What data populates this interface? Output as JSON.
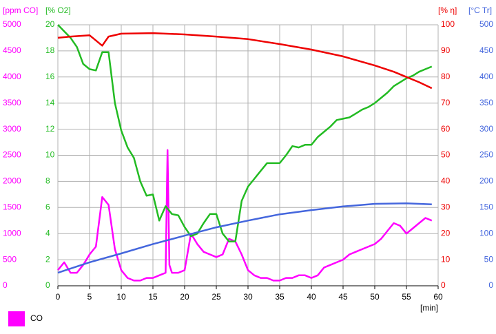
{
  "chart_data": {
    "type": "line",
    "ylabel": "[ppm CO]",
    "ylim": [
      0,
      5000
    ],
    "yticks": [
      0,
      500,
      1000,
      1500,
      2000,
      2500,
      3000,
      3500,
      4000,
      4500,
      5000
    ],
    "y2label": "[% O2]",
    "y2lim": [
      0,
      20
    ],
    "y2ticks": [
      0,
      2,
      4,
      6,
      8,
      10,
      12,
      14,
      16,
      18,
      20
    ],
    "y3label": "[% η]",
    "y3lim": [
      0,
      100
    ],
    "y3ticks": [
      0,
      10,
      20,
      30,
      40,
      50,
      60,
      70,
      80,
      90,
      100
    ],
    "y4label": "[°C Tr]",
    "y4lim": [
      0,
      500
    ],
    "y4ticks": [
      0,
      50,
      100,
      150,
      200,
      250,
      300,
      350,
      400,
      450,
      500
    ],
    "xlabel": "[min]",
    "xlim": [
      0,
      60
    ],
    "xticks": [
      0,
      5,
      10,
      15,
      20,
      25,
      30,
      35,
      40,
      45,
      50,
      55,
      60
    ],
    "grid": true,
    "legend": "bottom-left",
    "series": [
      {
        "name": "CO",
        "color": "#ff00ff",
        "axis": "y",
        "x": [
          0,
          1,
          2,
          3,
          4,
          5,
          6,
          7,
          8,
          9,
          10,
          11,
          12,
          13,
          14,
          15,
          16,
          17,
          17.3,
          17.6,
          18,
          19,
          20,
          21,
          22,
          23,
          24,
          25,
          26,
          27,
          28,
          29,
          30,
          31,
          32,
          33,
          34,
          35,
          36,
          37,
          38,
          39,
          40,
          41,
          42,
          43,
          44,
          45,
          46,
          47,
          48,
          49,
          50,
          51,
          52,
          53,
          54,
          55,
          56,
          57,
          58,
          59
        ],
        "values": [
          300,
          450,
          250,
          250,
          400,
          600,
          750,
          1700,
          1550,
          700,
          300,
          150,
          100,
          100,
          150,
          150,
          200,
          250,
          2600,
          400,
          250,
          250,
          300,
          1000,
          800,
          650,
          600,
          550,
          600,
          900,
          850,
          600,
          300,
          200,
          150,
          150,
          100,
          100,
          150,
          150,
          200,
          200,
          150,
          200,
          350,
          400,
          450,
          500,
          600,
          650,
          700,
          750,
          800,
          900,
          1050,
          1200,
          1150,
          1000,
          1100,
          1200,
          1300,
          1250
        ]
      },
      {
        "color": "#22bb22",
        "axis": "y2",
        "x": [
          0,
          1,
          2,
          3,
          4,
          5,
          6,
          7,
          8,
          9,
          10,
          11,
          12,
          13,
          14,
          15,
          16,
          17,
          18,
          19,
          20,
          21,
          22,
          23,
          24,
          25,
          26,
          27,
          28,
          29,
          30,
          31,
          32,
          33,
          34,
          35,
          36,
          37,
          38,
          39,
          40,
          41,
          42,
          43,
          44,
          45,
          46,
          47,
          48,
          49,
          50,
          51,
          52,
          53,
          54,
          55,
          56,
          57,
          58,
          59
        ],
        "values": [
          20,
          19.5,
          19,
          18.3,
          17,
          16.6,
          16.5,
          17.9,
          17.9,
          14,
          11.9,
          10.6,
          9.8,
          8,
          6.9,
          7,
          5,
          6.1,
          5.5,
          5.4,
          4.5,
          3.8,
          4,
          4.8,
          5.5,
          5.5,
          4,
          3.4,
          3.4,
          6.5,
          7.6,
          8.2,
          8.8,
          9.4,
          9.4,
          9.4,
          10,
          10.7,
          10.6,
          10.8,
          10.8,
          11.4,
          11.8,
          12.2,
          12.7,
          12.8,
          12.9,
          13.2,
          13.5,
          13.7,
          14,
          14.4,
          14.8,
          15.3,
          15.6,
          15.9,
          16.1,
          16.4,
          16.6,
          16.8
        ]
      },
      {
        "color": "#ee0000",
        "axis": "y3",
        "x": [
          0,
          2,
          5,
          7,
          8,
          10,
          15,
          20,
          25,
          30,
          35,
          40,
          45,
          50,
          53,
          55,
          57,
          59
        ],
        "values": [
          95,
          95.5,
          96,
          92,
          95.5,
          96.6,
          96.8,
          96.3,
          95.5,
          94.5,
          92.6,
          90.5,
          87.9,
          84.4,
          82,
          80,
          78,
          75.7
        ]
      },
      {
        "color": "#4466dd",
        "axis": "y4",
        "x": [
          0,
          5,
          10,
          15,
          20,
          25,
          30,
          35,
          40,
          45,
          50,
          55,
          59
        ],
        "values": [
          25,
          45,
          62,
          80,
          96,
          112,
          125,
          137,
          145,
          152,
          157,
          158,
          156
        ]
      }
    ]
  }
}
